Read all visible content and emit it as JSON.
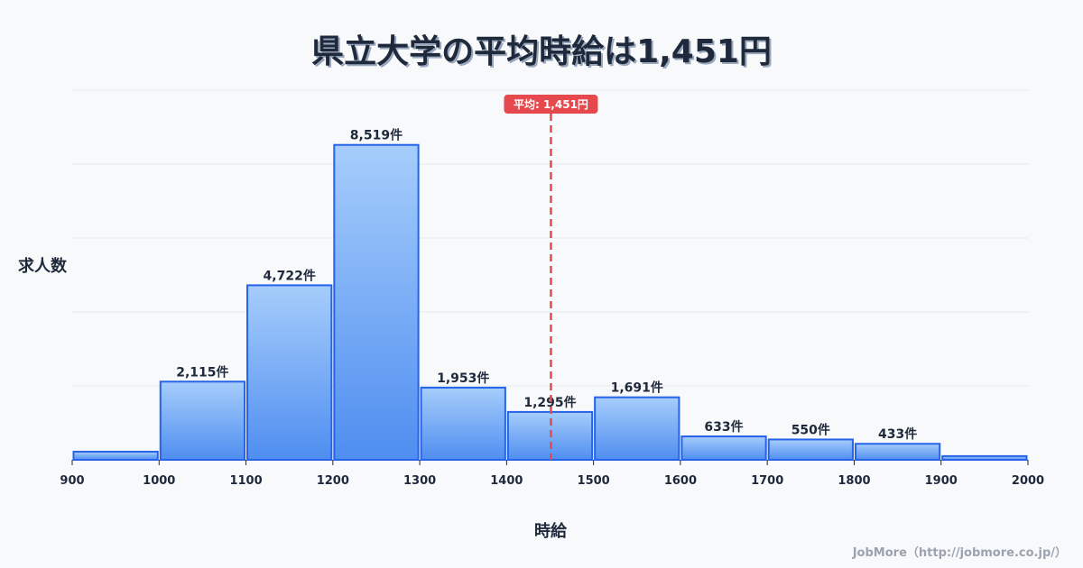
{
  "header": {
    "title": "県立大学の平均時給は1,451円"
  },
  "axes": {
    "ylabel": "求人数",
    "xlabel": "時給"
  },
  "credit": "JobMore（http://jobmore.co.jp/）",
  "average": {
    "label": "平均: 1,451円",
    "value": 1451,
    "color": "#e5484d"
  },
  "colors": {
    "bar_top": "#a6cdfb",
    "bar_bottom": "#4f8ef0",
    "bar_stroke": "#2563eb",
    "grid": "#e5e7eb",
    "text": "#1e293b"
  },
  "chart_data": {
    "type": "bar",
    "title": "県立大学の平均時給は1,451円",
    "xlabel": "時給",
    "ylabel": "求人数",
    "bins": [
      {
        "from": 900,
        "to": 1000,
        "value": 220,
        "label": ""
      },
      {
        "from": 1000,
        "to": 1100,
        "value": 2115,
        "label": "2,115件"
      },
      {
        "from": 1100,
        "to": 1200,
        "value": 4722,
        "label": "4,722件"
      },
      {
        "from": 1200,
        "to": 1300,
        "value": 8519,
        "label": "8,519件"
      },
      {
        "from": 1300,
        "to": 1400,
        "value": 1953,
        "label": "1,953件"
      },
      {
        "from": 1400,
        "to": 1500,
        "value": 1295,
        "label": "1,295件"
      },
      {
        "from": 1500,
        "to": 1600,
        "value": 1691,
        "label": "1,691件"
      },
      {
        "from": 1600,
        "to": 1700,
        "value": 633,
        "label": "633件"
      },
      {
        "from": 1700,
        "to": 1800,
        "value": 550,
        "label": "550件"
      },
      {
        "from": 1800,
        "to": 1900,
        "value": 433,
        "label": "433件"
      },
      {
        "from": 1900,
        "to": 2000,
        "value": 100,
        "label": ""
      }
    ],
    "categories": [
      "900-1000",
      "1000-1100",
      "1100-1200",
      "1200-1300",
      "1300-1400",
      "1400-1500",
      "1500-1600",
      "1600-1700",
      "1700-1800",
      "1800-1900",
      "1900-2000"
    ],
    "values": [
      220,
      2115,
      4722,
      8519,
      1953,
      1295,
      1691,
      633,
      550,
      433,
      100
    ],
    "x_ticks": [
      900,
      1000,
      1100,
      1200,
      1300,
      1400,
      1500,
      1600,
      1700,
      1800,
      1900,
      2000
    ],
    "xlim": [
      900,
      2000
    ],
    "ylim": [
      0,
      10000
    ],
    "grid": true,
    "y_grid_step": 2000,
    "annotations": [
      {
        "type": "vline",
        "x": 1451,
        "label": "平均: 1,451円",
        "style": "dashed",
        "color": "#e5484d"
      }
    ],
    "legend": null
  }
}
